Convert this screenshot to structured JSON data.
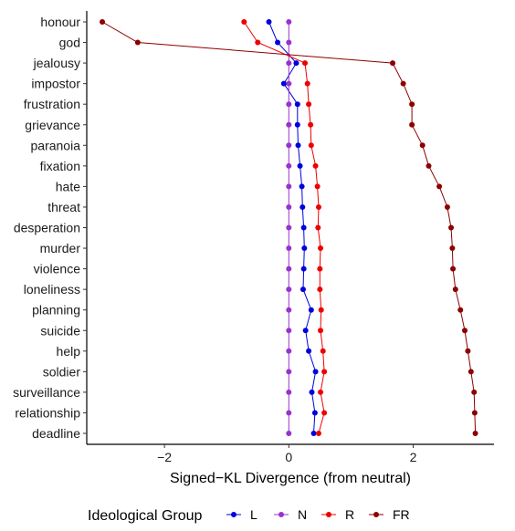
{
  "chart_data": {
    "type": "line",
    "orientation": "horizontal",
    "xlabel": "Signed−KL Divergence (from neutral)",
    "ylabel": "",
    "xlim": [
      -3.25,
      3.3
    ],
    "x_ticks": [
      -2,
      0,
      2
    ],
    "x_tick_labels": [
      "−2",
      "0",
      "2"
    ],
    "grid": false,
    "legend_position": "bottom",
    "legend_title": "Ideological Group",
    "categories": [
      "honour",
      "god",
      "jealousy",
      "impostor",
      "frustration",
      "grievance",
      "paranoia",
      "fixation",
      "hate",
      "threat",
      "desperation",
      "murder",
      "violence",
      "loneliness",
      "planning",
      "suicide",
      "help",
      "soldier",
      "surveillance",
      "relationship",
      "deadline"
    ],
    "series": [
      {
        "name": "L",
        "color": "#0000dd",
        "values": [
          -0.32,
          -0.18,
          0.12,
          -0.08,
          0.14,
          0.14,
          0.15,
          0.18,
          0.21,
          0.22,
          0.24,
          0.25,
          0.24,
          0.23,
          0.36,
          0.27,
          0.32,
          0.43,
          0.37,
          0.42,
          0.4
        ]
      },
      {
        "name": "N",
        "color": "#9932cc",
        "values": [
          0,
          0,
          0,
          0,
          0,
          0,
          0,
          0,
          0,
          0,
          0,
          0,
          0,
          0,
          0,
          0,
          0,
          0,
          0,
          0,
          0
        ]
      },
      {
        "name": "R",
        "color": "#ee0000",
        "values": [
          -0.72,
          -0.5,
          0.26,
          0.3,
          0.32,
          0.35,
          0.36,
          0.43,
          0.46,
          0.48,
          0.47,
          0.51,
          0.5,
          0.5,
          0.52,
          0.51,
          0.55,
          0.57,
          0.51,
          0.57,
          0.48
        ]
      },
      {
        "name": "FR",
        "color": "#8b0000",
        "values": [
          -3.0,
          -2.43,
          1.67,
          1.84,
          1.98,
          1.98,
          2.15,
          2.25,
          2.42,
          2.55,
          2.61,
          2.63,
          2.64,
          2.68,
          2.76,
          2.83,
          2.88,
          2.93,
          2.98,
          2.99,
          3.0
        ]
      }
    ]
  }
}
